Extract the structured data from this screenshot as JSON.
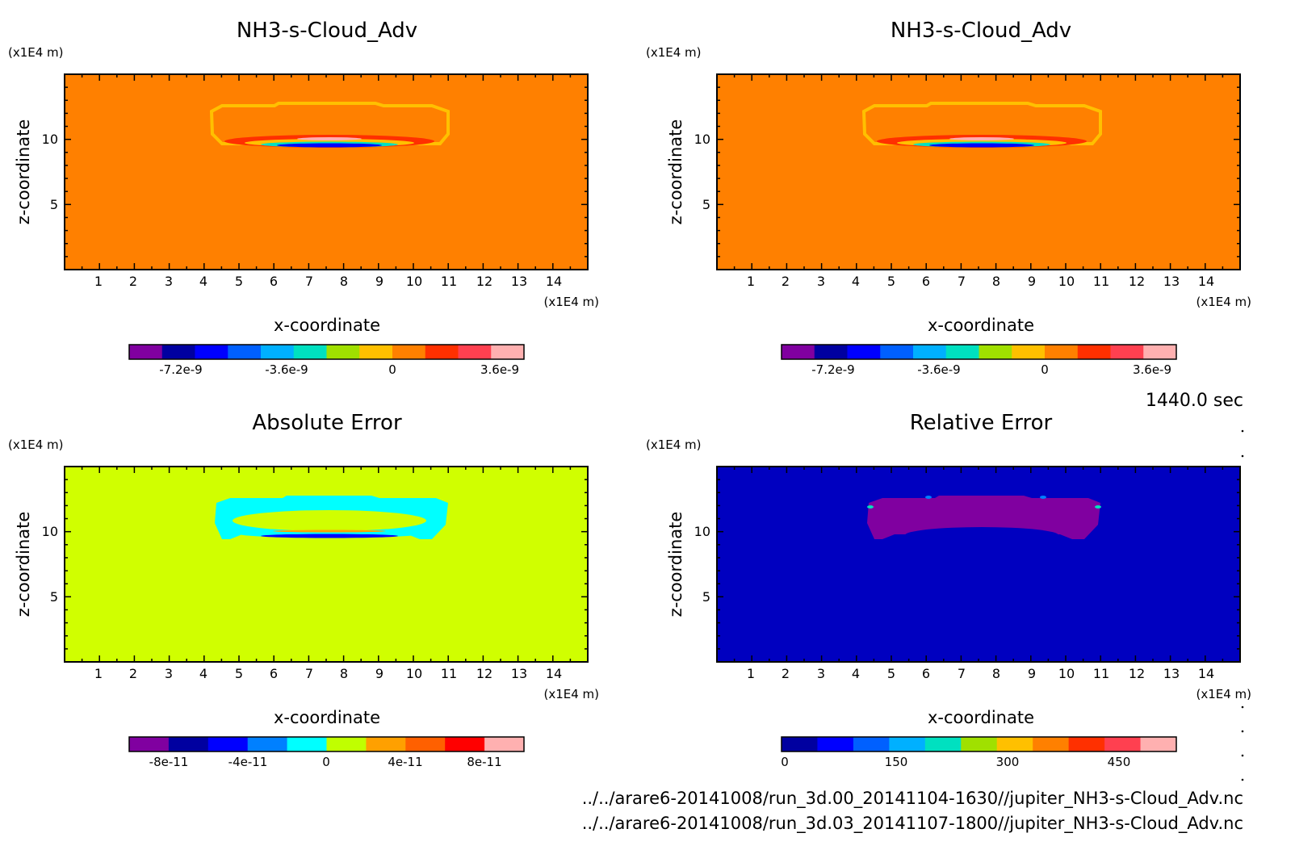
{
  "chart_data": [
    {
      "type": "heatmap",
      "title": "NH3-s-Cloud_Adv",
      "xlabel": "x-coordinate",
      "ylabel": "z-coordinate",
      "x_unit": "(x1E4 m)",
      "y_unit": "(x1E4 m)",
      "xlim": [
        0,
        15
      ],
      "ylim": [
        0,
        15
      ],
      "x_ticks": [
        "1",
        "2",
        "3",
        "4",
        "5",
        "6",
        "7",
        "8",
        "9",
        "10",
        "11",
        "12",
        "13",
        "14"
      ],
      "y_ticks": [
        "5",
        "10"
      ],
      "background_color": "#ff8000",
      "colorbar": {
        "colors": [
          "#8000a0",
          "#0000a0",
          "#0000ff",
          "#0060ff",
          "#00b0ff",
          "#00e0c0",
          "#a0e000",
          "#ffc000",
          "#ff8000",
          "#ff3000",
          "#ff4050",
          "#ffb0b0"
        ],
        "tick_labels": [
          "-7.2e-9",
          "-3.6e-9",
          "0",
          "3.6e-9"
        ]
      }
    },
    {
      "type": "heatmap",
      "title": "NH3-s-Cloud_Adv",
      "xlabel": "x-coordinate",
      "ylabel": "z-coordinate",
      "x_unit": "(x1E4 m)",
      "y_unit": "(x1E4 m)",
      "xlim": [
        0,
        15
      ],
      "ylim": [
        0,
        15
      ],
      "x_ticks": [
        "1",
        "2",
        "3",
        "4",
        "5",
        "6",
        "7",
        "8",
        "9",
        "10",
        "11",
        "12",
        "13",
        "14"
      ],
      "y_ticks": [
        "5",
        "10"
      ],
      "background_color": "#ff8000",
      "colorbar": {
        "colors": [
          "#8000a0",
          "#0000a0",
          "#0000ff",
          "#0060ff",
          "#00b0ff",
          "#00e0c0",
          "#a0e000",
          "#ffc000",
          "#ff8000",
          "#ff3000",
          "#ff4050",
          "#ffb0b0"
        ],
        "tick_labels": [
          "-7.2e-9",
          "-3.6e-9",
          "0",
          "3.6e-9"
        ]
      }
    },
    {
      "type": "heatmap",
      "title": "Absolute Error",
      "xlabel": "x-coordinate",
      "ylabel": "z-coordinate",
      "x_unit": "(x1E4 m)",
      "y_unit": "(x1E4 m)",
      "xlim": [
        0,
        15
      ],
      "ylim": [
        0,
        15
      ],
      "x_ticks": [
        "1",
        "2",
        "3",
        "4",
        "5",
        "6",
        "7",
        "8",
        "9",
        "10",
        "11",
        "12",
        "13",
        "14"
      ],
      "y_ticks": [
        "5",
        "10"
      ],
      "background_color": "#d0ff00",
      "colorbar": {
        "colors": [
          "#8000a0",
          "#0000a0",
          "#0000ff",
          "#0080ff",
          "#00ffff",
          "#c0ff00",
          "#ffa000",
          "#ff6000",
          "#ff0000",
          "#ffb0b0"
        ],
        "tick_labels": [
          "-8e-11",
          "-4e-11",
          "0",
          "4e-11",
          "8e-11"
        ]
      }
    },
    {
      "type": "heatmap",
      "title": "Relative Error",
      "xlabel": "x-coordinate",
      "ylabel": "z-coordinate",
      "x_unit": "(x1E4 m)",
      "y_unit": "(x1E4 m)",
      "xlim": [
        0,
        15
      ],
      "ylim": [
        0,
        15
      ],
      "x_ticks": [
        "1",
        "2",
        "3",
        "4",
        "5",
        "6",
        "7",
        "8",
        "9",
        "10",
        "11",
        "12",
        "13",
        "14"
      ],
      "y_ticks": [
        "5",
        "10"
      ],
      "background_color": "#0000c0",
      "colorbar": {
        "colors": [
          "#0000a0",
          "#0000ff",
          "#0060ff",
          "#00b0ff",
          "#00e0c0",
          "#a0e000",
          "#ffc000",
          "#ff8000",
          "#ff3000",
          "#ff4050",
          "#ffb0b0"
        ],
        "tick_labels": [
          "0",
          "150",
          "300",
          "450"
        ]
      }
    }
  ],
  "time_label": "1440.0 sec",
  "file_paths": [
    "../../arare6-20141008/run_3d.00_20141104-1630//jupiter_NH3-s-Cloud_Adv.nc",
    "../../arare6-20141008/run_3d.03_20141107-1800//jupiter_NH3-s-Cloud_Adv.nc"
  ]
}
